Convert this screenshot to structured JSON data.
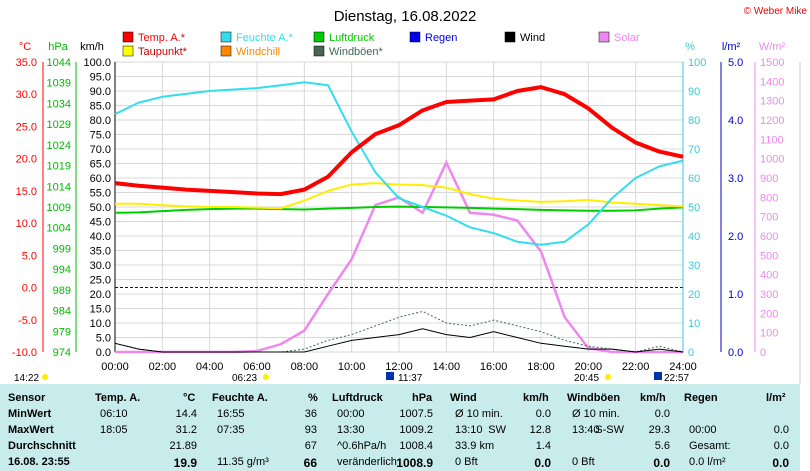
{
  "copyright": "© Weber Mike",
  "chart_data": {
    "type": "line",
    "title": "Dienstag, 16.08.2022",
    "legend": [
      {
        "label": "Temp. A.*",
        "color": "#ff0000"
      },
      {
        "label": "Feuchte A.*",
        "color": "#33ddee"
      },
      {
        "label": "Luftdruck",
        "color": "#00cc00"
      },
      {
        "label": "Regen",
        "color": "#0000ee"
      },
      {
        "label": "Wind",
        "color": "#000000"
      },
      {
        "label": "Solar",
        "color": "#ee88ee"
      },
      {
        "label": "Taupunkt*",
        "color": "#ffff00"
      },
      {
        "label": "Windchill",
        "color": "#ff8800"
      },
      {
        "label": "Windböen*",
        "color": "#446655"
      }
    ],
    "axes": {
      "temp": {
        "unit": "°C",
        "ticks": [
          "35.0",
          "30.0",
          "25.0",
          "20.0",
          "15.0",
          "10.0",
          "5.0",
          "0.0",
          "-5.0",
          "-10.0"
        ],
        "color": "#ff0000"
      },
      "pressure": {
        "unit": "hPa",
        "ticks": [
          "1044",
          "1039",
          "1034",
          "1029",
          "1024",
          "1019",
          "1014",
          "1009",
          "1004",
          "999",
          "994",
          "989",
          "984",
          "979",
          "974"
        ],
        "color": "#00bb00"
      },
      "wind": {
        "unit": "km/h",
        "ticks": [
          "100.0",
          "95.0",
          "90.0",
          "85.0",
          "80.0",
          "75.0",
          "70.0",
          "65.0",
          "60.0",
          "55.0",
          "50.0",
          "45.0",
          "40.0",
          "35.0",
          "30.0",
          "25.0",
          "20.0",
          "15.0",
          "10.0",
          "5.0",
          "0.0"
        ],
        "color": "#000000"
      },
      "humidity": {
        "unit": "%",
        "ticks": [
          "100",
          "90",
          "80",
          "70",
          "60",
          "50",
          "40",
          "30",
          "20",
          "10",
          "0"
        ],
        "color": "#33ccdd"
      },
      "rain": {
        "unit": "l/m²",
        "ticks": [
          "5.0",
          "4.0",
          "3.0",
          "2.0",
          "1.0",
          "0.0"
        ],
        "color": "#0000cc"
      },
      "solar": {
        "unit": "W/m²",
        "ticks": [
          "1500",
          "1400",
          "1300",
          "1200",
          "1100",
          "1000",
          "900",
          "800",
          "700",
          "600",
          "500",
          "400",
          "300",
          "200",
          "100",
          "0"
        ],
        "color": "#ee88ee"
      },
      "x_ticks": [
        "00:00",
        "02:00",
        "04:00",
        "06:00",
        "08:00",
        "10:00",
        "12:00",
        "14:00",
        "16:00",
        "18:00",
        "20:00",
        "22:00",
        "24:00"
      ]
    },
    "x_hours": [
      0,
      1,
      2,
      3,
      4,
      5,
      6,
      7,
      8,
      9,
      10,
      11,
      12,
      13,
      14,
      15,
      16,
      17,
      18,
      19,
      20,
      21,
      22,
      23,
      24
    ],
    "series": [
      {
        "name": "Temp. A.*",
        "axis": "temp",
        "values": [
          16.2,
          15.8,
          15.5,
          15.2,
          15.0,
          14.8,
          14.6,
          14.5,
          15.2,
          17.2,
          21.0,
          23.8,
          25.2,
          27.5,
          28.8,
          29.0,
          29.2,
          30.5,
          31.1,
          30.0,
          27.8,
          24.8,
          22.5,
          21.1,
          20.3
        ]
      },
      {
        "name": "Taupunkt*",
        "axis": "temp",
        "values": [
          13.0,
          13.0,
          12.8,
          12.6,
          12.5,
          12.5,
          12.4,
          12.3,
          13.5,
          15.0,
          16.0,
          16.2,
          16.0,
          15.9,
          15.5,
          14.5,
          13.8,
          13.5,
          13.3,
          13.4,
          13.6,
          13.2,
          13.0,
          12.8,
          12.6
        ]
      },
      {
        "name": "Feuchte A.*",
        "axis": "humidity",
        "values": [
          82,
          86,
          88,
          89,
          90,
          90.5,
          91,
          92,
          93,
          92,
          76,
          62,
          53,
          50,
          47,
          43,
          41,
          38,
          37,
          38,
          44,
          53,
          60,
          64,
          66
        ]
      },
      {
        "name": "Luftdruck",
        "axis": "pressure",
        "values": [
          1007.6,
          1007.7,
          1008.0,
          1008.3,
          1008.5,
          1008.6,
          1008.6,
          1008.5,
          1008.4,
          1008.6,
          1008.8,
          1009.0,
          1009.1,
          1009.0,
          1008.9,
          1008.8,
          1008.6,
          1008.5,
          1008.3,
          1008.2,
          1008.1,
          1008.1,
          1008.2,
          1008.6,
          1008.9
        ]
      }
    ],
    "solar_hourly": [
      0,
      0,
      0,
      0,
      0,
      0,
      5,
      40,
      110,
      300,
      480,
      760,
      800,
      720,
      980,
      720,
      710,
      680,
      520,
      180,
      20,
      0,
      0,
      0,
      0
    ],
    "wind_hourly": [
      3,
      1,
      0,
      0,
      0,
      0,
      0,
      0,
      0,
      2,
      4,
      5,
      6,
      8,
      6,
      5,
      7,
      5,
      3,
      2,
      1,
      1,
      0,
      1,
      0
    ],
    "gust_hourly": [
      3,
      1,
      0,
      0,
      0,
      0,
      0,
      0,
      1,
      4,
      6,
      9,
      12,
      14,
      10,
      9,
      11,
      9,
      7,
      4,
      2,
      1,
      0,
      2,
      0
    ],
    "markers": {
      "sunrise": "06:23",
      "sunset": "20:45",
      "moonrise": "22:57",
      "culmination": "11:37",
      "now": "14:22"
    }
  },
  "table": {
    "headers": {
      "sensor": "Sensor",
      "temp": "Temp. A.",
      "temp_unit": "°C",
      "hum": "Feuchte A.",
      "hum_unit": "%",
      "press": "Luftdruck",
      "press_unit": "hPa",
      "wind": "Wind",
      "wind_unit": "km/h",
      "gust": "Windböen",
      "gust_unit": "km/h",
      "rain": "Regen",
      "rain_unit": "l/m²"
    },
    "rows": [
      {
        "label": "MinWert",
        "t_time": "06:10",
        "t_val": "14.4",
        "h_time": "16:55",
        "h_val": "36",
        "p_time": "00:00",
        "p_val": "1007.5",
        "w_time": "Ø 10 min.",
        "w_val": "0.0",
        "g_time": "Ø 10 min.",
        "g_val": "0.0",
        "r_time": "",
        "r_val": ""
      },
      {
        "label": "MaxWert",
        "t_time": "18:05",
        "t_val": "31.2",
        "h_time": "07:35",
        "h_val": "93",
        "p_time": "13:30",
        "p_val": "1009.2",
        "w_time": "13:10",
        "w_dir": "SW",
        "w_val": "12.8",
        "g_time": "13:40",
        "g_dir": "S-SW",
        "g_val": "29.3",
        "r_time": "00:00",
        "r_val": "0.0"
      },
      {
        "label": "Durchschnitt",
        "t_time": "",
        "t_val": "21.89",
        "h_time": "",
        "h_val": "67",
        "p_time": "^0.6hPa/h",
        "p_val": "1008.4",
        "w_time": "33.9 km",
        "w_val": "1.4",
        "g_time": "",
        "g_val": "5.6",
        "r_time": "Gesamt:",
        "r_val": "0.0"
      },
      {
        "label": "16.08. 23:55",
        "t_time": "",
        "t_val": "19.9",
        "h_time": "11.35 g/m³",
        "h_val": "66",
        "p_time": "veränderlich",
        "p_val": "1008.9",
        "w_time": "0 Bft",
        "w_val": "0.0",
        "g_time": "0 Bft",
        "g_val": "0.0",
        "r_time": "0.0 l/m²",
        "r_val": "0.0"
      }
    ]
  }
}
